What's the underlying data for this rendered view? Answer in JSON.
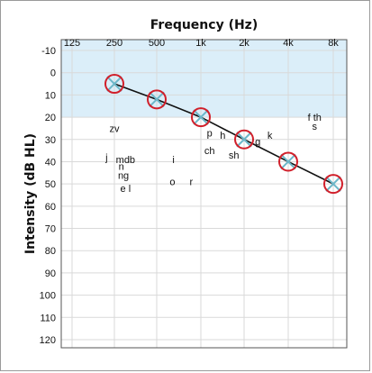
{
  "chart_data": {
    "type": "line",
    "title": "",
    "xlabel": "Frequency (Hz)",
    "ylabel": "Intensity (dB HL)",
    "x_categories": [
      "125",
      "250",
      "500",
      "1k",
      "2k",
      "4k",
      "8k"
    ],
    "y_ticks": [
      -10,
      0,
      10,
      20,
      30,
      40,
      50,
      60,
      70,
      80,
      90,
      100,
      110,
      120
    ],
    "ylim": [
      -10,
      120
    ],
    "y_inverted": true,
    "grid": true,
    "shaded_band": {
      "from": -10,
      "to": 20,
      "color": "#dbeef9"
    },
    "series": [
      {
        "name": "",
        "x": [
          "250",
          "500",
          "1k",
          "2k",
          "4k",
          "8k"
        ],
        "values": [
          5,
          12,
          20,
          30,
          40,
          50
        ],
        "line_color": "#111111",
        "circle_color": "#d11f2a",
        "cross_color": "#6cb7c9"
      }
    ],
    "annotations": [
      {
        "text": "zv",
        "x": 250,
        "y": 25
      },
      {
        "text": "j",
        "x": 220,
        "y": 38
      },
      {
        "text": "mdb",
        "x": 300,
        "y": 39
      },
      {
        "text": "n",
        "x": 280,
        "y": 42
      },
      {
        "text": "ng",
        "x": 290,
        "y": 46
      },
      {
        "text": "e l",
        "x": 300,
        "y": 52
      },
      {
        "text": "i",
        "x": 650,
        "y": 39
      },
      {
        "text": "o",
        "x": 640,
        "y": 49
      },
      {
        "text": "r",
        "x": 860,
        "y": 49
      },
      {
        "text": "p",
        "x": 1150,
        "y": 27
      },
      {
        "text": "h",
        "x": 1420,
        "y": 28
      },
      {
        "text": "ch",
        "x": 1150,
        "y": 35
      },
      {
        "text": "sh",
        "x": 1700,
        "y": 37
      },
      {
        "text": "g",
        "x": 2480,
        "y": 31
      },
      {
        "text": "k",
        "x": 3000,
        "y": 28
      },
      {
        "text": "f th",
        "x": 6000,
        "y": 20
      },
      {
        "text": "s",
        "x": 6000,
        "y": 24
      }
    ]
  }
}
